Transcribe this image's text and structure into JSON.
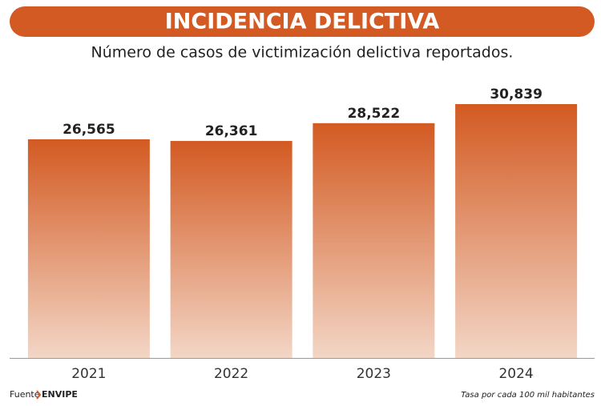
{
  "chart_data": {
    "type": "bar",
    "title": "INCIDENCIA DELICTIVA",
    "subtitle": "Número de casos de victimización delictiva reportados.",
    "categories": [
      "2021",
      "2022",
      "2023",
      "2024"
    ],
    "values": [
      26565,
      26361,
      28522,
      30839
    ],
    "value_labels": [
      "26,565",
      "26,361",
      "28,522",
      "30,839"
    ],
    "color": "#d35a22",
    "source_label": "Fuente",
    "source": "ENVIPE",
    "note": "Tasa por cada 100 mil habitantes"
  }
}
